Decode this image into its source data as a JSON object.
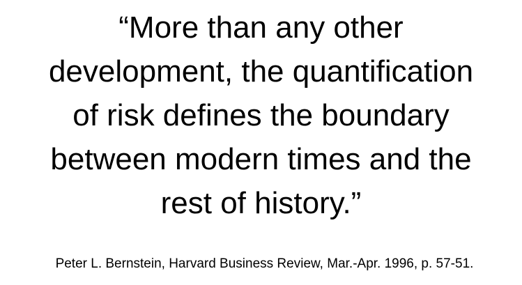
{
  "quote": {
    "lines": [
      "“More than any other",
      "development, the quantification",
      "of risk defines the boundary",
      "between modern times and the",
      "rest of history.”"
    ]
  },
  "citation": "Peter L. Bernstein, Harvard Business Review, Mar.-Apr. 1996, p. 57-51."
}
